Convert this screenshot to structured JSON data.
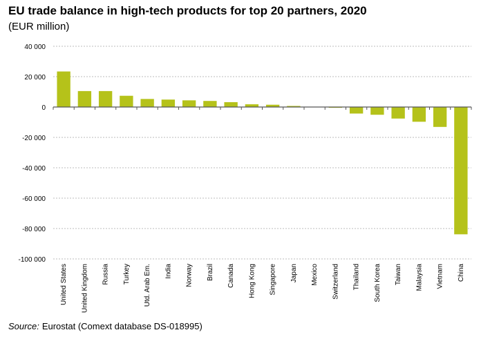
{
  "chart_data": {
    "type": "bar",
    "title": "EU trade balance in high-tech products for top 20 partners, 2020",
    "subtitle": "(EUR million)",
    "categories": [
      "United States",
      "United Kingdom",
      "Russia",
      "Turkey",
      "Utd. Arab Em.",
      "India",
      "Norway",
      "Brazil",
      "Canada",
      "Hong Kong",
      "Singapore",
      "Japan",
      "Mexico",
      "Switzerland",
      "Thailand",
      "South Korea",
      "Taiwan",
      "Malaysia",
      "Vietnam",
      "China"
    ],
    "values": [
      23400,
      10500,
      10500,
      7400,
      5300,
      4900,
      4400,
      4000,
      3200,
      1800,
      1500,
      700,
      0,
      -500,
      -4300,
      -5100,
      -7600,
      -9700,
      -13100,
      -83800
    ],
    "ylim": [
      -100000,
      40000
    ],
    "yticks": [
      40000,
      20000,
      0,
      -20000,
      -40000,
      -60000,
      -80000,
      -100000
    ],
    "ytick_labels": [
      "40 000",
      "20 000",
      "0",
      "-20 000",
      "-40 000",
      "-60 000",
      "-80 000",
      "-100 000"
    ],
    "grid": true,
    "bar_color": "#b5c21a",
    "source_label": "Source:",
    "source_text": "Eurostat (Comext database DS-018995)"
  }
}
